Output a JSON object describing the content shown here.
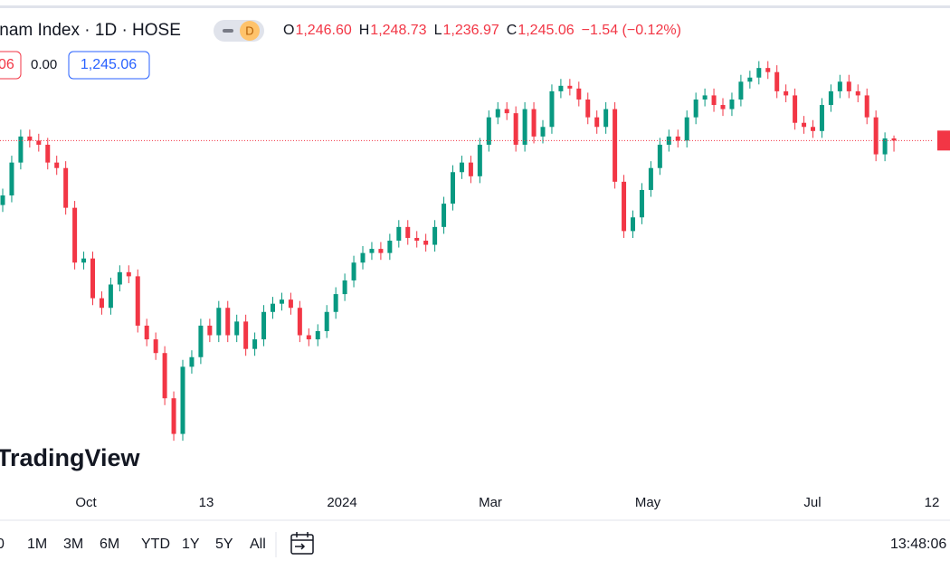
{
  "header": {
    "symbol": "tnam Index · 1D · HOSE",
    "badge": "D",
    "ohlc": [
      {
        "key": "O",
        "value": "1,246.60"
      },
      {
        "key": "H",
        "value": "1,248.73"
      },
      {
        "key": "L",
        "value": "1,236.97"
      },
      {
        "key": "C",
        "value": "1,245.06"
      }
    ],
    "change": "−1.54 (−0.12%)",
    "quotes": [
      "06",
      "0.00",
      "1,245.06"
    ]
  },
  "watermark": "TradingView",
  "chart_data": {
    "type": "candlestick",
    "up_color": "#089981",
    "down_color": "#f23645",
    "ylim": [
      1003,
      1341
    ],
    "x_labels": [
      "Oct",
      "13",
      "2024",
      "Mar",
      "May",
      "Jul",
      "12"
    ],
    "open": [
      1198,
      1205,
      1229,
      1248,
      1245,
      1242,
      1229,
      1225,
      1196,
      1156,
      1159,
      1130,
      1123,
      1140,
      1149,
      1146,
      1110,
      1100,
      1090,
      1057,
      1031,
      1080,
      1087,
      1110,
      1103,
      1123,
      1103,
      1113,
      1093,
      1100,
      1120,
      1126,
      1129,
      1123,
      1103,
      1100,
      1106,
      1120,
      1133,
      1143,
      1156,
      1163,
      1166,
      1163,
      1172,
      1182,
      1174,
      1172,
      1169,
      1182,
      1199,
      1222,
      1229,
      1219,
      1242,
      1262,
      1268,
      1265,
      1242,
      1268,
      1248,
      1255,
      1281,
      1285,
      1283,
      1275,
      1262,
      1255,
      1268,
      1215,
      1179,
      1189,
      1209,
      1225,
      1242,
      1248,
      1245,
      1262,
      1275,
      1278,
      1271,
      1268,
      1275,
      1288,
      1291,
      1298,
      1295,
      1281,
      1278,
      1258,
      1255,
      1252,
      1271,
      1281,
      1288,
      1281,
      1278,
      1262,
      1235,
      1246.6
    ],
    "high": [
      1210,
      1234,
      1253,
      1253,
      1250,
      1247,
      1234,
      1230,
      1201,
      1164,
      1164,
      1135,
      1145,
      1154,
      1154,
      1151,
      1115,
      1105,
      1095,
      1062,
      1085,
      1092,
      1115,
      1115,
      1128,
      1128,
      1118,
      1118,
      1105,
      1125,
      1131,
      1134,
      1134,
      1128,
      1108,
      1111,
      1125,
      1138,
      1148,
      1161,
      1168,
      1171,
      1171,
      1177,
      1187,
      1187,
      1179,
      1177,
      1187,
      1204,
      1227,
      1234,
      1234,
      1247,
      1267,
      1273,
      1273,
      1270,
      1273,
      1273,
      1260,
      1286,
      1290,
      1290,
      1288,
      1280,
      1267,
      1273,
      1273,
      1220,
      1194,
      1214,
      1230,
      1247,
      1253,
      1253,
      1267,
      1280,
      1283,
      1283,
      1276,
      1280,
      1293,
      1296,
      1303,
      1303,
      1300,
      1286,
      1283,
      1263,
      1260,
      1276,
      1286,
      1293,
      1293,
      1286,
      1283,
      1267,
      1251,
      1248.73
    ],
    "low": [
      1193,
      1200,
      1224,
      1240,
      1237,
      1224,
      1220,
      1191,
      1151,
      1151,
      1125,
      1118,
      1118,
      1135,
      1141,
      1105,
      1095,
      1085,
      1052,
      1026,
      1026,
      1075,
      1082,
      1098,
      1098,
      1098,
      1098,
      1088,
      1088,
      1095,
      1115,
      1121,
      1118,
      1098,
      1095,
      1095,
      1101,
      1115,
      1128,
      1138,
      1151,
      1158,
      1158,
      1158,
      1167,
      1169,
      1167,
      1164,
      1164,
      1177,
      1194,
      1217,
      1214,
      1214,
      1237,
      1257,
      1260,
      1237,
      1237,
      1243,
      1243,
      1250,
      1276,
      1278,
      1270,
      1257,
      1250,
      1250,
      1210,
      1174,
      1174,
      1184,
      1204,
      1220,
      1237,
      1240,
      1240,
      1257,
      1270,
      1266,
      1263,
      1263,
      1270,
      1283,
      1286,
      1290,
      1276,
      1273,
      1253,
      1250,
      1247,
      1247,
      1266,
      1276,
      1276,
      1273,
      1257,
      1230,
      1230,
      1236.97
    ],
    "close": [
      1205,
      1229,
      1248,
      1245,
      1242,
      1229,
      1225,
      1196,
      1156,
      1159,
      1130,
      1123,
      1140,
      1149,
      1146,
      1110,
      1100,
      1090,
      1057,
      1031,
      1080,
      1087,
      1110,
      1103,
      1123,
      1103,
      1113,
      1093,
      1100,
      1120,
      1126,
      1129,
      1123,
      1103,
      1100,
      1106,
      1120,
      1133,
      1143,
      1156,
      1163,
      1166,
      1163,
      1172,
      1182,
      1174,
      1172,
      1169,
      1182,
      1199,
      1222,
      1229,
      1219,
      1242,
      1262,
      1268,
      1265,
      1242,
      1268,
      1248,
      1255,
      1281,
      1285,
      1283,
      1275,
      1262,
      1255,
      1268,
      1215,
      1179,
      1189,
      1209,
      1225,
      1242,
      1248,
      1245,
      1262,
      1275,
      1278,
      1271,
      1268,
      1275,
      1288,
      1291,
      1298,
      1295,
      1281,
      1278,
      1258,
      1255,
      1252,
      1271,
      1281,
      1288,
      1281,
      1278,
      1262,
      1235,
      1246.6,
      1245.06
    ]
  },
  "toolbar": {
    "ranges": [
      "0",
      "1M",
      "3M",
      "6M",
      "YTD",
      "1Y",
      "5Y",
      "All"
    ],
    "clock": "13:48:06"
  }
}
